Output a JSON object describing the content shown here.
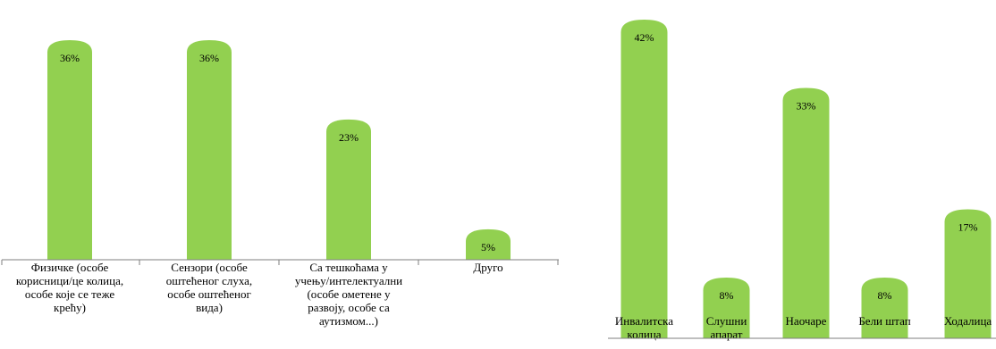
{
  "colors": {
    "bar": "#92d050",
    "axis": "#7f7f7f",
    "text": "#000000"
  },
  "chart_data": [
    {
      "type": "bar",
      "bar_shape": "rounded-top",
      "title": "",
      "xlabel": "",
      "ylabel": "",
      "ylim": [
        0,
        40
      ],
      "grid": false,
      "legend": "none",
      "categories": [
        [
          "Физичке (особе",
          "корисници/це колица,",
          "особе које се теже",
          "крећу)"
        ],
        [
          "Сензори (особе",
          "оштећеног слуха,",
          "особе оштећеног",
          "вида)"
        ],
        [
          "Са тешкоћама у",
          "учењу/интелектуални",
          "(особе ометене у",
          "развоју, особе са",
          "аутизмом...)"
        ],
        [
          "Друго"
        ]
      ],
      "values": [
        36,
        36,
        23,
        5
      ],
      "data_labels": [
        "36%",
        "36%",
        "23%",
        "5%"
      ]
    },
    {
      "type": "bar",
      "bar_shape": "rounded-top",
      "title": "",
      "xlabel": "",
      "ylabel": "",
      "ylim": [
        0,
        45
      ],
      "grid": false,
      "legend": "none",
      "categories": [
        [
          "Инвалитска",
          "колица"
        ],
        [
          "Слушни",
          "апарат"
        ],
        [
          "Наочаре"
        ],
        [
          "Бели штап"
        ],
        [
          "Ходалица"
        ]
      ],
      "values": [
        42,
        8,
        33,
        8,
        17
      ],
      "data_labels": [
        "42%",
        "8%",
        "33%",
        "8%",
        "17%"
      ]
    }
  ]
}
